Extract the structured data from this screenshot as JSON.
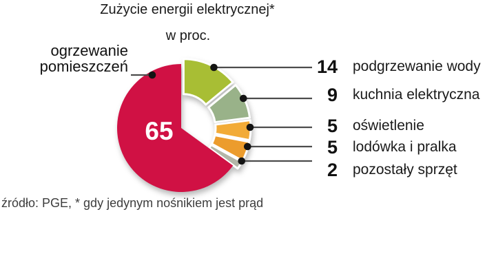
{
  "title": "Zużycie energii elektrycznej*",
  "subtitle": "w proc.",
  "source_note": "źródło: PGE, * gdy jedynym nośnikiem jest prąd",
  "colors": {
    "accent_red": "#d01144",
    "leader_line": "#4c4c4c",
    "leader_dot": "#141414",
    "inside_value_text": "#ffffff",
    "background": "#ffffff"
  },
  "chart_data": {
    "type": "pie",
    "title": "Zużycie energii elektrycznej*",
    "unit": "w proc.",
    "total": 100,
    "legend_position": "right",
    "slices": [
      {
        "label": "ogrzewanie pomieszczeń",
        "value": 65,
        "color": "#d01144",
        "side": "left",
        "value_inside": true
      },
      {
        "label": "podgrzewanie wody",
        "value": 14,
        "color": "#a8be34",
        "side": "right",
        "value_inside": false
      },
      {
        "label": "kuchnia elektryczna",
        "value": 9,
        "color": "#99b289",
        "side": "right",
        "value_inside": false
      },
      {
        "label": "oświetlenie",
        "value": 5,
        "color": "#f2ab37",
        "side": "right",
        "value_inside": false
      },
      {
        "label": "lodówka i pralka",
        "value": 5,
        "color": "#ec9c2d",
        "side": "right",
        "value_inside": false
      },
      {
        "label": "pozostały sprzęt",
        "value": 2,
        "color": "#b3b6a8",
        "side": "right",
        "value_inside": false
      }
    ]
  }
}
